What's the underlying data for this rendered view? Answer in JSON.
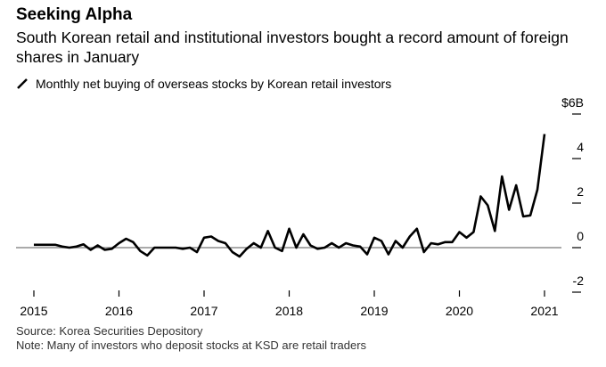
{
  "header": {
    "brand": "Seeking Alpha",
    "subtitle": "South Korean retail and institutional investors bought a record amount of foreign shares in January",
    "legend_label": "Monthly net buying of overseas stocks by Korean retail investors"
  },
  "footer": {
    "source": "Source: Korea Securities Depository",
    "note": "Note: Many of investors who deposit stocks at KSD are retail traders"
  },
  "chart_data": {
    "type": "line",
    "x_start": "2015-01",
    "x_end": "2021-01",
    "frequency": "monthly",
    "xticks": [
      "2015",
      "2016",
      "2017",
      "2018",
      "2019",
      "2020",
      "2021"
    ],
    "yticks": [
      "$6B",
      "4",
      "2",
      "0",
      "-2"
    ],
    "ylim": [
      -2,
      6
    ],
    "grid": false,
    "line_color": "#000000",
    "series": [
      {
        "name": "Monthly net buying of overseas stocks by Korean retail investors",
        "values": [
          0.13,
          0.13,
          0.13,
          0.13,
          0.05,
          0,
          0.05,
          0.15,
          -0.1,
          0.1,
          -0.1,
          -0.05,
          0.2,
          0.4,
          0.25,
          -0.15,
          -0.35,
          0,
          0,
          0,
          0,
          -0.05,
          0,
          -0.2,
          0.45,
          0.5,
          0.3,
          0.2,
          -0.2,
          -0.4,
          -0.05,
          0.2,
          0,
          0.75,
          0,
          -0.15,
          0.85,
          0,
          0.6,
          0.1,
          -0.05,
          0,
          0.2,
          0,
          0.2,
          0.1,
          0.05,
          -0.3,
          0.45,
          0.3,
          -0.3,
          0.3,
          0,
          0.5,
          0.85,
          -0.2,
          0.2,
          0.15,
          0.25,
          0.25,
          0.7,
          0.45,
          0.7,
          2.3,
          1.9,
          0.75,
          3.2,
          1.7,
          2.8,
          1.4,
          1.45,
          2.6,
          5.1
        ]
      }
    ]
  }
}
